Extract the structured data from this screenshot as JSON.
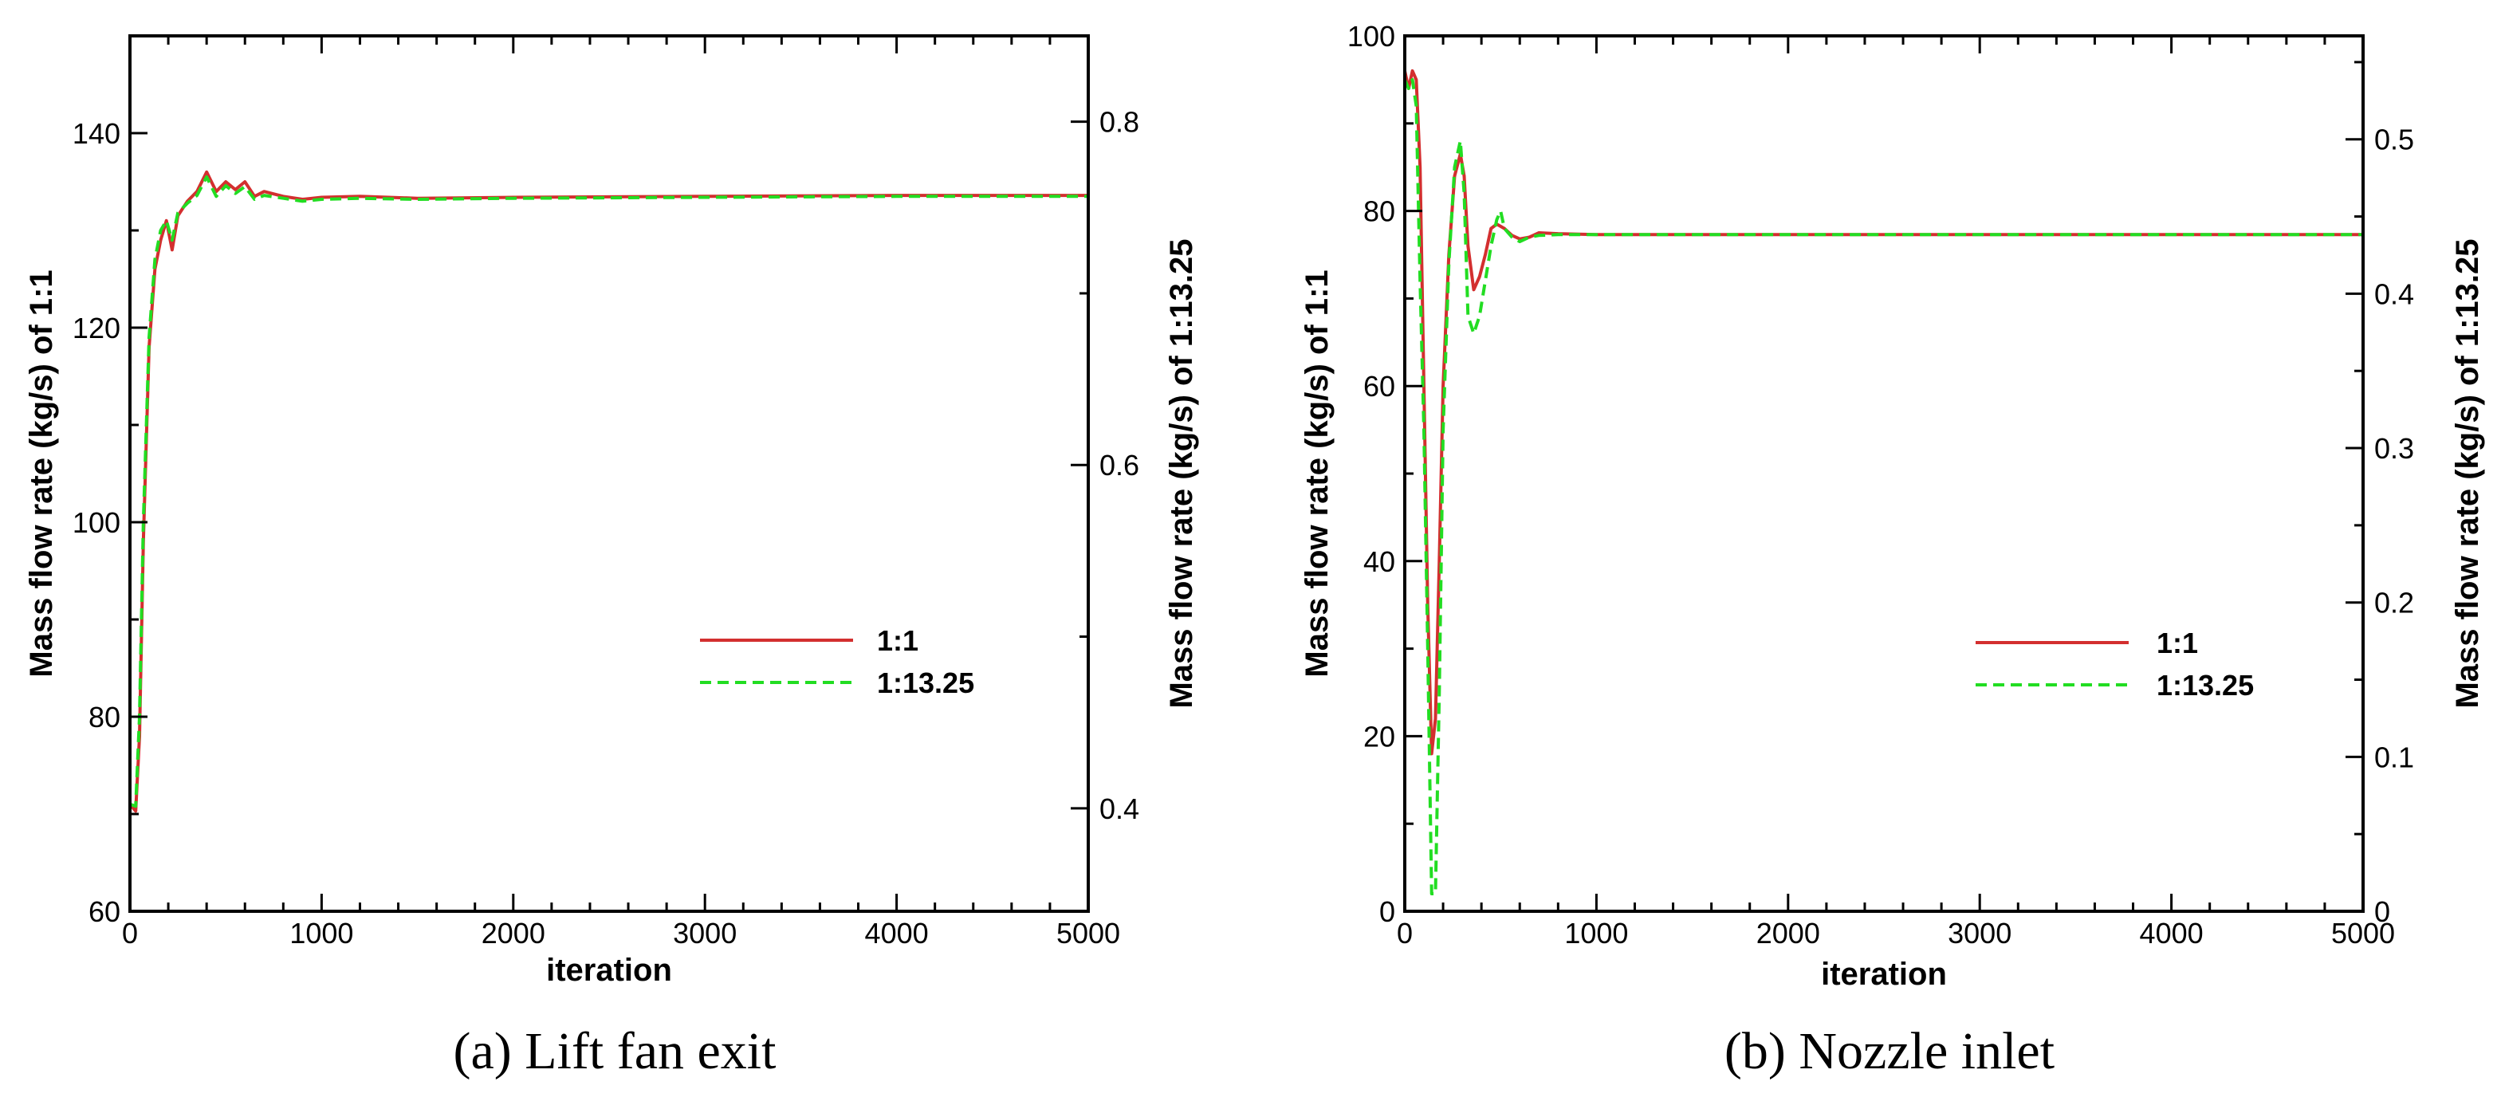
{
  "chart_data": [
    {
      "type": "line",
      "caption": "(a) Lift fan exit",
      "xlabel": "iteration",
      "ylabel": "Mass flow rate (kg/s) of 1:1",
      "y2label": "Mass flow rate (kg/s) of 1:13.25",
      "xlim": [
        0,
        5000
      ],
      "ylim": [
        60,
        150
      ],
      "y2lim": [
        0.34,
        0.85
      ],
      "xticks": [
        "0",
        "1000",
        "2000",
        "3000",
        "4000",
        "5000"
      ],
      "yticks": [
        "60",
        "80",
        "100",
        "120",
        "140"
      ],
      "y2ticks": [
        "0.4",
        "0.6",
        "0.8"
      ],
      "legend_position": "center-right",
      "series": [
        {
          "name": "1:1",
          "color": "#d32f2f",
          "style": "solid",
          "axis": "left",
          "x": [
            0,
            30,
            50,
            70,
            100,
            130,
            160,
            190,
            220,
            250,
            300,
            350,
            400,
            450,
            500,
            550,
            600,
            650,
            700,
            800,
            900,
            1000,
            1200,
            1500,
            2000,
            3000,
            4000,
            4500,
            5000
          ],
          "y": [
            71,
            70.3,
            78,
            98,
            118,
            126,
            129,
            131,
            128,
            131.5,
            133,
            134,
            136,
            134,
            135,
            134.2,
            135,
            133.5,
            134,
            133.5,
            133.2,
            133.4,
            133.5,
            133.3,
            133.4,
            133.5,
            133.6,
            133.6,
            133.6
          ]
        },
        {
          "name": "1:13.25",
          "color": "#22dd22",
          "style": "dashed",
          "axis": "left",
          "x": [
            0,
            30,
            50,
            70,
            100,
            130,
            160,
            190,
            220,
            250,
            300,
            350,
            400,
            450,
            500,
            550,
            600,
            650,
            700,
            800,
            900,
            1000,
            1200,
            1500,
            2000,
            3000,
            4000,
            4500,
            5000
          ],
          "y": [
            71,
            70.8,
            80,
            100,
            119,
            127,
            130,
            131,
            129,
            131.8,
            132.8,
            133.6,
            135.5,
            133.5,
            134.6,
            133.8,
            134.5,
            133.2,
            133.6,
            133.3,
            133.0,
            133.2,
            133.3,
            133.2,
            133.3,
            133.4,
            133.5,
            133.5,
            133.5
          ]
        }
      ]
    },
    {
      "type": "line",
      "caption": "(b) Nozzle inlet",
      "xlabel": "iteration",
      "ylabel": "Mass flow rate (kg/s) of 1:1",
      "y2label": "Mass flow rate (kg/s) of 1:13.25",
      "xlim": [
        0,
        5000
      ],
      "ylim": [
        0,
        100
      ],
      "y2lim": [
        0,
        0.567
      ],
      "xticks": [
        "0",
        "1000",
        "2000",
        "3000",
        "4000",
        "5000"
      ],
      "yticks": [
        "0",
        "20",
        "40",
        "60",
        "80",
        "100"
      ],
      "y2ticks": [
        "0",
        "0.1",
        "0.2",
        "0.3",
        "0.4",
        "0.5"
      ],
      "legend_position": "center-right",
      "series": [
        {
          "name": "1:1",
          "color": "#d32f2f",
          "style": "solid",
          "axis": "left",
          "x": [
            0,
            20,
            40,
            60,
            80,
            100,
            120,
            140,
            160,
            180,
            200,
            230,
            260,
            290,
            310,
            330,
            360,
            390,
            420,
            450,
            480,
            520,
            560,
            600,
            650,
            700,
            800,
            1000,
            2000,
            3000,
            4000,
            5000
          ],
          "y": [
            96,
            94,
            96,
            95,
            85,
            60,
            35,
            18,
            22,
            40,
            60,
            75,
            84,
            86.5,
            84,
            76,
            71,
            72.5,
            75,
            78,
            78.5,
            78,
            77.2,
            76.8,
            77,
            77.5,
            77.4,
            77.3,
            77.3,
            77.3,
            77.3,
            77.3
          ]
        },
        {
          "name": "1:13.25",
          "color": "#22dd22",
          "style": "dashed",
          "axis": "left",
          "x": [
            0,
            20,
            40,
            60,
            80,
            100,
            120,
            140,
            160,
            180,
            200,
            230,
            260,
            290,
            310,
            330,
            360,
            390,
            420,
            450,
            480,
            500,
            520,
            560,
            600,
            650,
            700,
            800,
            1000,
            2000,
            3000,
            4000,
            5000
          ],
          "y": [
            95,
            94,
            95,
            92,
            72,
            55,
            30,
            2,
            2,
            25,
            55,
            74,
            85,
            88,
            82,
            68,
            66,
            68,
            72,
            76,
            79,
            80,
            78,
            77,
            76.5,
            77,
            77.2,
            77.3,
            77.3,
            77.3,
            77.3,
            77.3,
            77.3
          ]
        }
      ]
    }
  ]
}
